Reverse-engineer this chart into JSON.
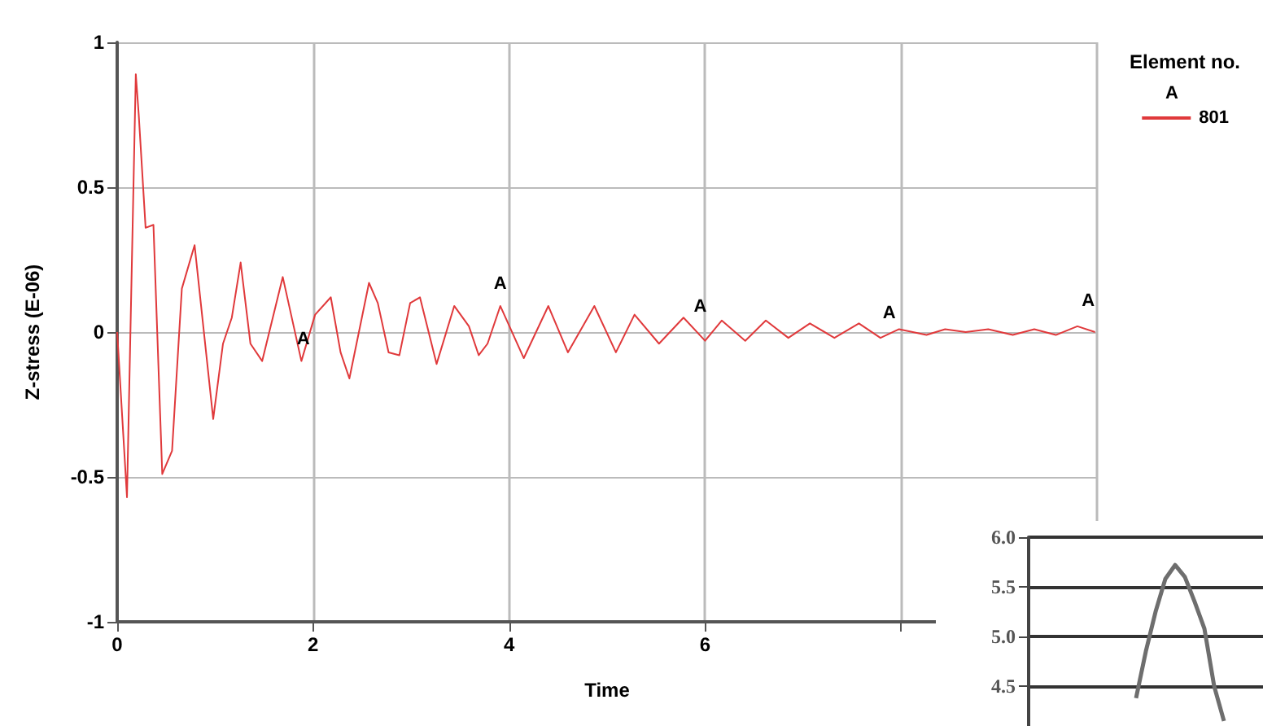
{
  "chart_data": [
    {
      "type": "line",
      "xlabel": "Time",
      "ylabel": "Z-stress (E-06)",
      "legend_title": "Element no.",
      "legend": "top right",
      "grid": true,
      "marker": "none",
      "line_style": "solid",
      "xlim": [
        0,
        10
      ],
      "xticks": [
        0,
        2,
        4,
        6,
        {
          "value": 8,
          "label": null
        },
        {
          "value": 10,
          "label": null
        }
      ],
      "ylim": [
        -1,
        1
      ],
      "yticks": [
        -1,
        -0.5,
        0,
        0.5,
        1
      ],
      "series": [
        {
          "name": "801",
          "color": "#e0393b",
          "x": [
            0,
            0.1,
            0.19,
            0.22,
            0.29,
            0.37,
            0.46,
            0.56,
            0.66,
            0.79,
            0.98,
            1.08,
            1.17,
            1.26,
            1.36,
            1.48,
            1.69,
            1.88,
            2.02,
            2.18,
            2.28,
            2.37,
            2.57,
            2.66,
            2.77,
            2.88,
            2.99,
            3.09,
            3.26,
            3.44,
            3.59,
            3.69,
            3.78,
            3.91,
            4.15,
            4.4,
            4.6,
            4.87,
            5.09,
            5.28,
            5.53,
            5.78,
            6.0,
            6.17,
            6.41,
            6.62,
            6.85,
            7.07,
            7.32,
            7.57,
            7.79,
            7.98,
            8.26,
            8.45,
            8.66,
            8.89,
            9.14,
            9.36,
            9.58,
            9.8,
            9.98
          ],
          "values": [
            0,
            -0.57,
            0.89,
            0.75,
            0.36,
            0.37,
            -0.49,
            -0.41,
            0.15,
            0.3,
            -0.3,
            -0.04,
            0.05,
            0.24,
            -0.04,
            -0.1,
            0.19,
            -0.1,
            0.06,
            0.12,
            -0.07,
            -0.16,
            0.17,
            0.1,
            -0.07,
            -0.08,
            0.1,
            0.12,
            -0.11,
            0.09,
            0.02,
            -0.08,
            -0.04,
            0.09,
            -0.09,
            0.09,
            -0.07,
            0.09,
            -0.07,
            0.06,
            -0.04,
            0.05,
            -0.03,
            0.04,
            -0.03,
            0.04,
            -0.02,
            0.03,
            -0.02,
            0.03,
            -0.02,
            0.01,
            -0.01,
            0.01,
            0,
            0.01,
            -0.01,
            0.01,
            -0.01,
            0.02,
            0
          ]
        }
      ],
      "annotations": [
        {
          "text": "A",
          "x": 1.9,
          "y": -0.1
        },
        {
          "text": "A",
          "x": 3.91,
          "y": 0.09
        },
        {
          "text": "A",
          "x": 5.95,
          "y": 0.01
        },
        {
          "text": "A",
          "x": 7.88,
          "y": -0.01
        },
        {
          "text": "A",
          "x": 9.91,
          "y": 0.03
        }
      ]
    },
    {
      "type": "line",
      "grid": "y",
      "tick_labels": "y",
      "marker": "none",
      "categories": [
        null,
        null,
        null,
        null,
        null,
        null,
        null,
        null,
        null,
        null,
        null,
        null,
        null,
        null,
        null,
        null,
        null,
        null,
        null,
        null,
        null,
        null,
        null,
        null,
        null
      ],
      "ylim": [
        4.1,
        6.0
      ],
      "yticks": [
        {
          "value": 4.5,
          "label": "4.5"
        },
        {
          "value": 5.0,
          "label": "5.0"
        },
        {
          "value": 5.5,
          "label": "5.5"
        },
        {
          "value": 6.0,
          "label": "6.0"
        }
      ],
      "series": [
        {
          "color": "#6e6e6e",
          "values": [
            null,
            null,
            null,
            null,
            null,
            null,
            null,
            null,
            null,
            null,
            null,
            4.38,
            4.85,
            5.25,
            5.58,
            5.72,
            5.6,
            5.35,
            5.08,
            4.5,
            4.15,
            null,
            null,
            null,
            null
          ]
        }
      ]
    }
  ]
}
